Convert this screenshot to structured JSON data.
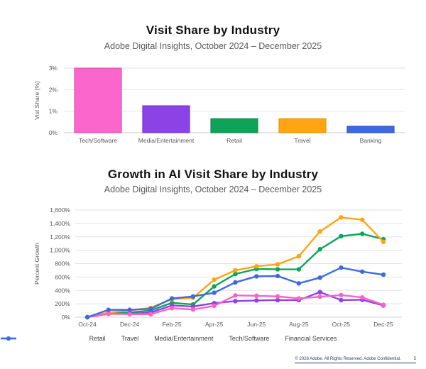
{
  "page": {
    "footer": {
      "copyright": "© 2026 Adobe. All Rights Reserved. Adobe Confidential.",
      "page_number": "5"
    }
  },
  "chart_data": [
    {
      "type": "bar",
      "title": "Visit Share by Industry",
      "subtitle": "Adobe Digital Insights, October 2024 – December 2025",
      "ylabel": "Vist Share (%)",
      "categories": [
        "Tech/Software",
        "Media/Entertainment",
        "Retail",
        "Travel",
        "Banking"
      ],
      "values": [
        3.0,
        1.25,
        0.65,
        0.65,
        0.3
      ],
      "bar_colors": [
        "#fa66cc",
        "#8c43e6",
        "#0fa35a",
        "#ffa412",
        "#3e6ae1"
      ],
      "bar_border_colors": [
        "#e44fb4",
        "#7a33d4",
        "#0c8c4c",
        "#ef9500",
        "#2f55c4"
      ],
      "ylim": [
        0,
        3
      ],
      "ytick_values": [
        0,
        1,
        2,
        3
      ],
      "ytick_suffix": "%",
      "grid": true
    },
    {
      "type": "line",
      "title": "Growth in AI Visit Share by Industry",
      "subtitle": "Adobe Digital Insights, October 2024 – December 2025",
      "ylabel": "Percent Growth",
      "x": [
        "Oct-24",
        "Nov-24",
        "Dec-24",
        "Jan-25",
        "Feb-25",
        "Mar-25",
        "Apr-25",
        "May-25",
        "Jun-25",
        "Jul-25",
        "Aug-25",
        "Sep-25",
        "Oct-25",
        "Nov-25",
        "Dec-25"
      ],
      "xtick_every": 2,
      "ylim": [
        0,
        1600
      ],
      "ytick_step": 200,
      "ytick_suffix": "%",
      "grid": true,
      "legend_position": "bottom",
      "series": [
        {
          "name": "Retail",
          "color": "#0fa35a",
          "values": [
            0,
            65,
            70,
            100,
            215,
            190,
            460,
            645,
            720,
            715,
            715,
            1015,
            1210,
            1245,
            1165
          ]
        },
        {
          "name": "Travel",
          "color": "#ffa412",
          "values": [
            0,
            70,
            100,
            140,
            270,
            290,
            560,
            700,
            760,
            790,
            910,
            1280,
            1490,
            1455,
            1125
          ]
        },
        {
          "name": "Media/Entertainment",
          "color": "#8c43e6",
          "values": [
            0,
            50,
            50,
            70,
            175,
            160,
            210,
            240,
            250,
            255,
            255,
            375,
            255,
            260,
            175
          ]
        },
        {
          "name": "Tech/Software",
          "color": "#fa63c6",
          "values": [
            0,
            50,
            45,
            45,
            135,
            115,
            170,
            325,
            320,
            310,
            280,
            305,
            330,
            295,
            185
          ]
        },
        {
          "name": "Financial Services",
          "color": "#3e6ae1",
          "values": [
            0,
            110,
            110,
            125,
            280,
            310,
            365,
            520,
            610,
            615,
            505,
            590,
            740,
            680,
            635
          ]
        }
      ]
    }
  ]
}
